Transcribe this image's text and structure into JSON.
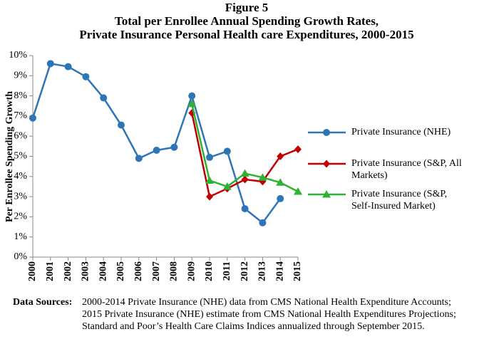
{
  "chart_data": {
    "type": "line",
    "title": [
      "Figure 5",
      "Total per Enrollee Annual Spending Growth Rates,",
      "Private Insurance Personal Health care Expenditures, 2000-2015"
    ],
    "y_label": "Per Enrollee Spending Growth",
    "categories": [
      "2000",
      "2001",
      "2002",
      "2003",
      "2004",
      "2005",
      "2006",
      "2007",
      "2008",
      "2009",
      "2010",
      "2011",
      "2012",
      "2013",
      "2014",
      "2015"
    ],
    "series": [
      {
        "name": "Private Insurance (NHE)",
        "color": "#2e75b6",
        "marker": "circle",
        "values": [
          6.9,
          9.6,
          9.45,
          8.95,
          7.9,
          6.55,
          4.9,
          5.3,
          5.45,
          8.0,
          4.95,
          5.25,
          2.4,
          1.7,
          2.9,
          null
        ]
      },
      {
        "name": "Private Insurance (S&P, All Markets)",
        "color": "#c00000",
        "marker": "diamond",
        "values": [
          null,
          null,
          null,
          null,
          null,
          null,
          null,
          null,
          null,
          7.15,
          3.0,
          3.4,
          3.85,
          3.75,
          5.0,
          5.35
        ]
      },
      {
        "name": "Private Insurance (S&P, Self-Insured Market)",
        "color": "#2eb135",
        "marker": "triangle",
        "values": [
          null,
          null,
          null,
          null,
          null,
          null,
          null,
          null,
          null,
          7.6,
          3.8,
          3.5,
          4.15,
          3.95,
          3.7,
          3.25
        ]
      }
    ],
    "ylim": [
      0,
      10
    ],
    "yticks": [
      {
        "value": 0,
        "label": "0%"
      },
      {
        "value": 1,
        "label": "1%"
      },
      {
        "value": 2,
        "label": "2%"
      },
      {
        "value": 3,
        "label": "3%"
      },
      {
        "value": 4,
        "label": "4%"
      },
      {
        "value": 5,
        "label": "5%"
      },
      {
        "value": 6,
        "label": "6%"
      },
      {
        "value": 7,
        "label": "7%"
      },
      {
        "value": 8,
        "label": "8%"
      },
      {
        "value": 9,
        "label": "9%"
      },
      {
        "value": 10,
        "label": "10%"
      }
    ],
    "legend": "right",
    "source_label": "Data Sources:",
    "source_lines": [
      "2000-2014  Private Insurance (NHE) data from CMS National Health Expenditure Accounts;",
      "2015 Private Insurance (NHE) estimate from CMS National Health Expenditures Projections;",
      "Standard and Poor’s Health Care Claims Indices annualized through September 2015."
    ]
  }
}
